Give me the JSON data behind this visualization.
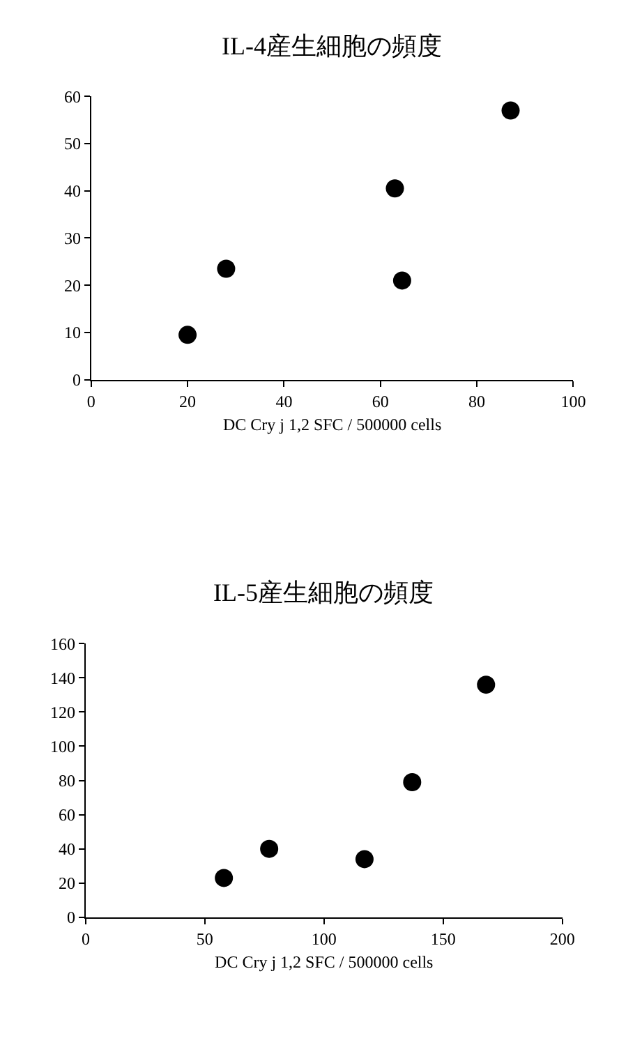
{
  "chart_data": [
    {
      "type": "scatter",
      "title": "IL-4産生細胞の頻度",
      "xlabel": "DC Cry j 1,2 SFC / 500000 cells",
      "x": [
        20,
        28,
        63,
        64.5,
        87
      ],
      "series": [
        {
          "color": "#000000",
          "values": [
            9.5,
            23.5,
            40.5,
            21,
            57
          ]
        }
      ],
      "xlim": [
        0,
        100
      ],
      "xticks": [
        0,
        20,
        40,
        60,
        80,
        100
      ],
      "ylim": [
        0,
        60
      ],
      "yticks": [
        0,
        10,
        20,
        30,
        40,
        50,
        60
      ],
      "marker": "circle"
    },
    {
      "type": "scatter",
      "title": "IL-5産生細胞の頻度",
      "xlabel": "DC Cry j 1,2 SFC / 500000 cells",
      "x": [
        58,
        77,
        117,
        137,
        168
      ],
      "series": [
        {
          "color": "#000000",
          "values": [
            23,
            40,
            34,
            79,
            136
          ]
        }
      ],
      "xlim": [
        0,
        200
      ],
      "xticks": [
        0,
        50,
        100,
        150,
        200
      ],
      "ylim": [
        0,
        160
      ],
      "yticks": [
        0,
        20,
        40,
        60,
        80,
        100,
        120,
        140,
        160
      ],
      "marker": "circle"
    }
  ]
}
